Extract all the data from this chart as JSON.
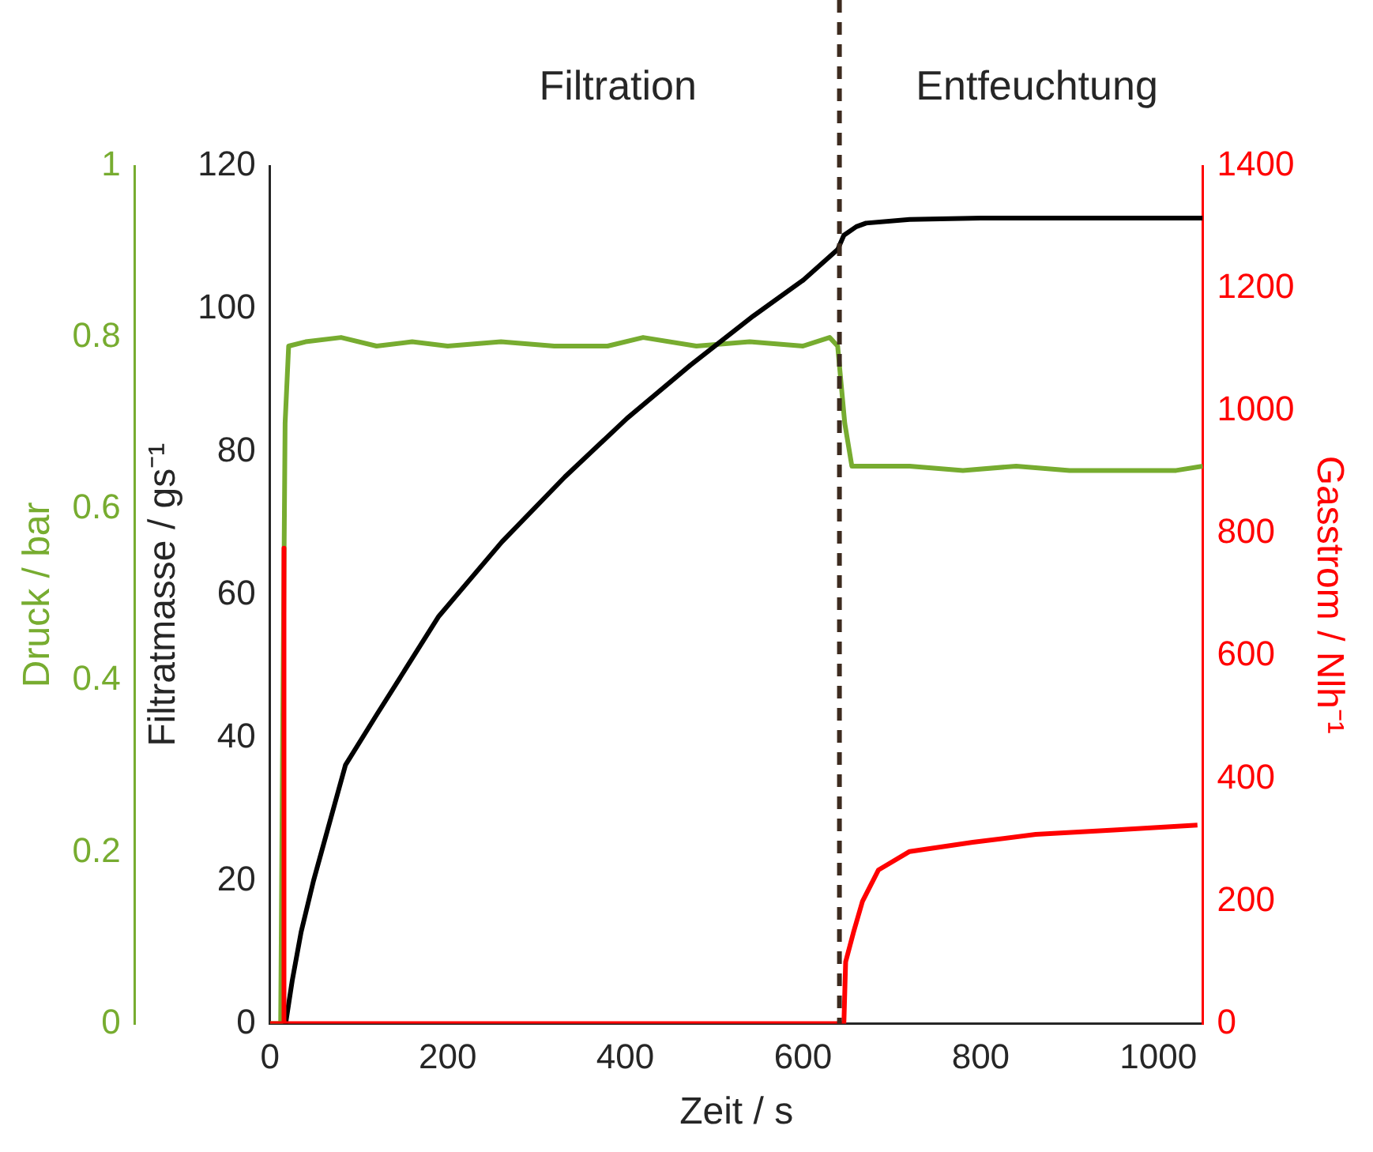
{
  "chart_data": {
    "type": "line",
    "xlabel": "Zeit / s",
    "ylabel": "Filtratmasse / gs⁻¹",
    "y2label": "Gasstrom / Nlh⁻¹",
    "y3label": "Druck / bar",
    "xlim": [
      0,
      1050
    ],
    "xticks": [
      0,
      200,
      400,
      600,
      800,
      1000
    ],
    "ylim": [
      0,
      120
    ],
    "yticks": [
      0,
      20,
      40,
      60,
      80,
      100,
      120
    ],
    "y2lim": [
      0,
      1400
    ],
    "y2ticks": [
      0,
      200,
      400,
      600,
      800,
      1000,
      1200,
      1400
    ],
    "y3lim": [
      0,
      1
    ],
    "y3ticks": [
      0,
      0.2,
      0.4,
      0.6,
      0.8,
      1
    ],
    "grid": false,
    "marker": "none",
    "line_style": "solid",
    "annotations": [
      "Filtration",
      "Entfeuchtung"
    ],
    "ref_lines": [
      {
        "axis": "x",
        "value": 641,
        "color": "#3d2b1f",
        "line_style": "dashed"
      }
    ],
    "series": [
      {
        "color": "#77ac30",
        "axis": "y3",
        "x": [
          0,
          12,
          14,
          17,
          21,
          40,
          80,
          120,
          160,
          200,
          260,
          320,
          380,
          420,
          480,
          540,
          600,
          630,
          639,
          647,
          655,
          670,
          720,
          780,
          840,
          900,
          960,
          1020,
          1050
        ],
        "values": [
          0,
          0,
          0.3,
          0.7,
          0.79,
          0.795,
          0.8,
          0.79,
          0.795,
          0.79,
          0.795,
          0.79,
          0.79,
          0.8,
          0.79,
          0.795,
          0.79,
          0.8,
          0.79,
          0.7,
          0.65,
          0.65,
          0.65,
          0.645,
          0.65,
          0.645,
          0.645,
          0.645,
          0.65
        ]
      },
      {
        "color": "#000000",
        "x": [
          17.6,
          25,
          35,
          49,
          85,
          120,
          190,
          261,
          332,
          402,
          473,
          544,
          600,
          639,
          646,
          660,
          671,
          720,
          800,
          900,
          1050
        ],
        "values": [
          0,
          6,
          12.8,
          20,
          36.2,
          43.2,
          57,
          67.4,
          76.5,
          84.7,
          92.1,
          99,
          104,
          108.3,
          110.3,
          111.5,
          112,
          112.5,
          112.7,
          112.7,
          112.7
        ]
      },
      {
        "color": "#ff0000",
        "axis": "y2",
        "x": [
          0,
          15,
          15.5,
          16,
          646,
          648,
          657,
          667,
          685,
          720,
          791,
          862,
          950,
          1044
        ],
        "values": [
          0,
          0,
          776,
          0,
          0,
          101,
          150,
          200,
          251,
          281,
          296,
          309,
          316,
          324
        ]
      }
    ]
  }
}
